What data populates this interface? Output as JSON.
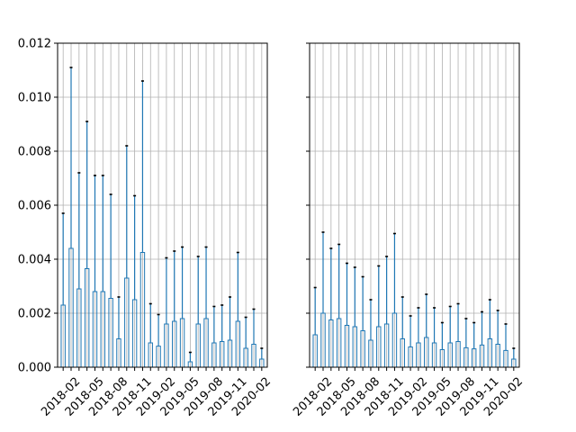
{
  "chart_data": [
    {
      "type": "bar",
      "panel": "left",
      "grid": true,
      "ylim": [
        0,
        0.012
      ],
      "yticks": [
        "0.000",
        "0.002",
        "0.004",
        "0.006",
        "0.008",
        "0.010",
        "0.012"
      ],
      "ytick_values": [
        0,
        0.002,
        0.004,
        0.006,
        0.008,
        0.01,
        0.012
      ],
      "categories": [
        "2018-01",
        "2018-02",
        "2018-03",
        "2018-04",
        "2018-05",
        "2018-06",
        "2018-07",
        "2018-08",
        "2018-09",
        "2018-10",
        "2018-11",
        "2018-12",
        "2019-01",
        "2019-02",
        "2019-03",
        "2019-04",
        "2019-05",
        "2019-06",
        "2019-07",
        "2019-08",
        "2019-09",
        "2019-10",
        "2019-11",
        "2019-12",
        "2020-01",
        "2020-02"
      ],
      "xtick_labels": [
        "2018-02",
        "2018-05",
        "2018-08",
        "2018-11",
        "2019-02",
        "2019-05",
        "2019-08",
        "2019-11",
        "2020-02"
      ],
      "xtick_indices": [
        1,
        4,
        7,
        10,
        13,
        16,
        19,
        22,
        25
      ],
      "values": [
        0.0023,
        0.0044,
        0.0029,
        0.00365,
        0.0028,
        0.0028,
        0.00255,
        0.00105,
        0.0033,
        0.0025,
        0.00425,
        0.0009,
        0.00078,
        0.0016,
        0.0017,
        0.0018,
        0.0002,
        0.0016,
        0.0018,
        0.0009,
        0.00095,
        0.001,
        0.0017,
        0.0007,
        0.00085,
        0.0003
      ],
      "error_upper": [
        0.0057,
        0.0111,
        0.0072,
        0.0091,
        0.0071,
        0.0071,
        0.0064,
        0.0026,
        0.0082,
        0.00635,
        0.0106,
        0.00235,
        0.00195,
        0.00405,
        0.0043,
        0.00445,
        0.00055,
        0.0041,
        0.00445,
        0.00225,
        0.0023,
        0.0026,
        0.00425,
        0.00185,
        0.00215,
        0.0007
      ]
    },
    {
      "type": "bar",
      "panel": "right",
      "grid": true,
      "ylim": [
        0,
        0.012
      ],
      "yticks": [],
      "ytick_values": [
        0,
        0.002,
        0.004,
        0.006,
        0.008,
        0.01,
        0.012
      ],
      "categories": [
        "2018-01",
        "2018-02",
        "2018-03",
        "2018-04",
        "2018-05",
        "2018-06",
        "2018-07",
        "2018-08",
        "2018-09",
        "2018-10",
        "2018-11",
        "2018-12",
        "2019-01",
        "2019-02",
        "2019-03",
        "2019-04",
        "2019-05",
        "2019-06",
        "2019-07",
        "2019-08",
        "2019-09",
        "2019-10",
        "2019-11",
        "2019-12",
        "2020-01",
        "2020-02"
      ],
      "xtick_labels": [
        "2018-02",
        "2018-05",
        "2018-08",
        "2018-11",
        "2019-02",
        "2019-05",
        "2019-08",
        "2019-11",
        "2020-02"
      ],
      "xtick_indices": [
        1,
        4,
        7,
        10,
        13,
        16,
        19,
        22,
        25
      ],
      "values": [
        0.0012,
        0.002,
        0.00175,
        0.0018,
        0.00155,
        0.0015,
        0.00135,
        0.001,
        0.0015,
        0.0016,
        0.002,
        0.00105,
        0.00075,
        0.0009,
        0.0011,
        0.0009,
        0.00065,
        0.0009,
        0.00095,
        0.00072,
        0.00068,
        0.00082,
        0.00105,
        0.00085,
        0.00062,
        0.0003
      ],
      "error_upper": [
        0.00295,
        0.005,
        0.0044,
        0.00455,
        0.00385,
        0.0037,
        0.00335,
        0.0025,
        0.00375,
        0.0041,
        0.00495,
        0.0026,
        0.0019,
        0.0022,
        0.0027,
        0.0022,
        0.00165,
        0.00225,
        0.00235,
        0.0018,
        0.00165,
        0.00205,
        0.0025,
        0.0021,
        0.0016,
        0.0007
      ]
    }
  ]
}
